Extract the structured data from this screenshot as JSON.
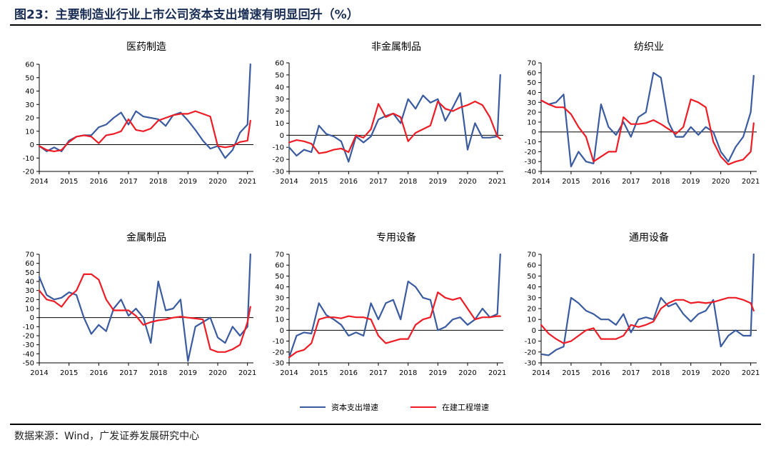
{
  "figure": {
    "title": "图23：主要制造业行业上市公司资本支出增速有明显回升（%）",
    "source": "数据来源：Wind，广发证券发展研究中心"
  },
  "legend": [
    {
      "label": "资本支出增速",
      "color": "#3a5ba0"
    },
    {
      "label": "在建工程增速",
      "color": "#ee1c25"
    }
  ],
  "chart_data": [
    {
      "type": "line",
      "title": "医药制造",
      "ylim": [
        -20,
        60
      ],
      "yticks": [
        -20,
        -10,
        0,
        10,
        20,
        30,
        40,
        50,
        60
      ],
      "xlim": [
        2014,
        2021.2
      ],
      "xticks": [
        2014,
        2015,
        2016,
        2017,
        2018,
        2019,
        2020,
        2021
      ],
      "series": [
        {
          "name": "资本支出增速",
          "x": [
            2014.0,
            2014.25,
            2014.5,
            2014.75,
            2015.0,
            2015.25,
            2015.5,
            2015.75,
            2016.0,
            2016.25,
            2016.5,
            2016.75,
            2017.0,
            2017.25,
            2017.5,
            2017.75,
            2018.0,
            2018.25,
            2018.5,
            2018.75,
            2019.0,
            2019.25,
            2019.5,
            2019.75,
            2020.0,
            2020.25,
            2020.5,
            2020.75,
            2021.0,
            2021.1
          ],
          "y": [
            -1,
            -5,
            -2,
            -5,
            3,
            6,
            7,
            7,
            13,
            15,
            20,
            24,
            15,
            25,
            21,
            20,
            19,
            14,
            22,
            24,
            18,
            11,
            3,
            -3,
            -1,
            -10,
            -4,
            9,
            15,
            60
          ]
        },
        {
          "name": "在建工程增速",
          "x": [
            2014.0,
            2014.25,
            2014.5,
            2014.75,
            2015.0,
            2015.25,
            2015.5,
            2015.75,
            2016.0,
            2016.25,
            2016.5,
            2016.75,
            2017.0,
            2017.25,
            2017.5,
            2017.75,
            2018.0,
            2018.25,
            2018.5,
            2018.75,
            2019.0,
            2019.25,
            2019.5,
            2019.75,
            2020.0,
            2020.25,
            2020.5,
            2020.75,
            2021.0,
            2021.1
          ],
          "y": [
            -1,
            -4,
            -5,
            -4,
            2,
            6,
            7,
            6,
            1,
            7,
            8,
            10,
            19,
            11,
            10,
            12,
            18,
            20,
            22,
            23,
            23,
            25,
            23,
            21,
            -1,
            -2,
            -1,
            2,
            3,
            18
          ]
        }
      ]
    },
    {
      "type": "line",
      "title": "非金属制品",
      "ylim": [
        -30,
        60
      ],
      "yticks": [
        -30,
        -20,
        -10,
        0,
        10,
        20,
        30,
        40,
        50,
        60
      ],
      "xlim": [
        2014,
        2021.2
      ],
      "xticks": [
        2014,
        2015,
        2016,
        2017,
        2018,
        2019,
        2020,
        2021
      ],
      "series": [
        {
          "name": "资本支出增速",
          "x": [
            2014.0,
            2014.25,
            2014.5,
            2014.75,
            2015.0,
            2015.25,
            2015.5,
            2015.75,
            2016.0,
            2016.25,
            2016.5,
            2016.75,
            2017.0,
            2017.25,
            2017.5,
            2017.75,
            2018.0,
            2018.25,
            2018.5,
            2018.75,
            2019.0,
            2019.25,
            2019.5,
            2019.75,
            2020.0,
            2020.25,
            2020.5,
            2020.75,
            2021.0,
            2021.1
          ],
          "y": [
            -10,
            -17,
            -12,
            -14,
            8,
            1,
            -1,
            -5,
            -22,
            -1,
            -6,
            -1,
            13,
            16,
            18,
            10,
            30,
            22,
            33,
            27,
            30,
            12,
            23,
            35,
            -12,
            10,
            -2,
            -2,
            -1,
            50
          ]
        },
        {
          "name": "在建工程增速",
          "x": [
            2014.0,
            2014.25,
            2014.5,
            2014.75,
            2015.0,
            2015.25,
            2015.5,
            2015.75,
            2016.0,
            2016.25,
            2016.5,
            2016.75,
            2017.0,
            2017.25,
            2017.5,
            2017.75,
            2018.0,
            2018.25,
            2018.5,
            2018.75,
            2019.0,
            2019.25,
            2019.5,
            2019.75,
            2020.0,
            2020.25,
            2020.5,
            2020.75,
            2021.0,
            2021.1
          ],
          "y": [
            -6,
            -4,
            -5,
            -7,
            -15,
            -14,
            -12,
            -11,
            -14,
            0,
            -2,
            5,
            26,
            15,
            18,
            15,
            -5,
            2,
            5,
            8,
            28,
            22,
            20,
            23,
            25,
            28,
            25,
            15,
            -1,
            -3
          ]
        }
      ]
    },
    {
      "type": "line",
      "title": "纺织业",
      "ylim": [
        -40,
        70
      ],
      "yticks": [
        -40,
        -30,
        -20,
        -10,
        0,
        10,
        20,
        30,
        40,
        50,
        60,
        70
      ],
      "xlim": [
        2014,
        2021.2
      ],
      "xticks": [
        2014,
        2015,
        2016,
        2017,
        2018,
        2019,
        2020,
        2021
      ],
      "series": [
        {
          "name": "资本支出增速",
          "x": [
            2014.0,
            2014.25,
            2014.5,
            2014.75,
            2015.0,
            2015.25,
            2015.5,
            2015.75,
            2016.0,
            2016.25,
            2016.5,
            2016.75,
            2017.0,
            2017.25,
            2017.5,
            2017.75,
            2018.0,
            2018.25,
            2018.5,
            2018.75,
            2019.0,
            2019.25,
            2019.5,
            2019.75,
            2020.0,
            2020.25,
            2020.5,
            2020.75,
            2021.0,
            2021.1
          ],
          "y": [
            32,
            28,
            30,
            38,
            -35,
            -20,
            -30,
            -32,
            28,
            5,
            -3,
            10,
            -5,
            15,
            20,
            60,
            55,
            10,
            -5,
            -5,
            5,
            -3,
            5,
            0,
            -20,
            -30,
            -15,
            -5,
            20,
            57
          ]
        },
        {
          "name": "在建工程增速",
          "x": [
            2014.0,
            2014.25,
            2014.5,
            2014.75,
            2015.0,
            2015.25,
            2015.5,
            2015.75,
            2016.0,
            2016.25,
            2016.5,
            2016.75,
            2017.0,
            2017.25,
            2017.5,
            2017.75,
            2018.0,
            2018.25,
            2018.5,
            2018.75,
            2019.0,
            2019.25,
            2019.5,
            2019.75,
            2020.0,
            2020.25,
            2020.5,
            2020.75,
            2021.0,
            2021.1
          ],
          "y": [
            32,
            28,
            25,
            25,
            18,
            5,
            -5,
            -30,
            -25,
            -20,
            -20,
            15,
            8,
            8,
            9,
            12,
            8,
            3,
            -2,
            5,
            33,
            30,
            25,
            -10,
            -25,
            -33,
            -30,
            -28,
            -20,
            9
          ]
        }
      ]
    },
    {
      "type": "line",
      "title": "金属制品",
      "ylim": [
        -50,
        70
      ],
      "yticks": [
        -50,
        -40,
        -30,
        -20,
        -10,
        0,
        10,
        20,
        30,
        40,
        50,
        60,
        70
      ],
      "xlim": [
        2014,
        2021.2
      ],
      "xticks": [
        2014,
        2015,
        2016,
        2017,
        2018,
        2019,
        2020,
        2021
      ],
      "series": [
        {
          "name": "资本支出增速",
          "x": [
            2014.0,
            2014.25,
            2014.5,
            2014.75,
            2015.0,
            2015.25,
            2015.5,
            2015.75,
            2016.0,
            2016.25,
            2016.5,
            2016.75,
            2017.0,
            2017.25,
            2017.5,
            2017.75,
            2018.0,
            2018.25,
            2018.5,
            2018.75,
            2019.0,
            2019.25,
            2019.5,
            2019.75,
            2020.0,
            2020.25,
            2020.5,
            2020.75,
            2021.0,
            2021.1
          ],
          "y": [
            45,
            25,
            20,
            22,
            28,
            25,
            0,
            -18,
            -8,
            -15,
            10,
            20,
            2,
            10,
            0,
            -28,
            40,
            8,
            10,
            20,
            -48,
            -10,
            -5,
            0,
            -22,
            -28,
            -10,
            -20,
            -10,
            70
          ]
        },
        {
          "name": "在建工程增速",
          "x": [
            2014.0,
            2014.25,
            2014.5,
            2014.75,
            2015.0,
            2015.25,
            2015.5,
            2015.75,
            2016.0,
            2016.25,
            2016.5,
            2016.75,
            2017.0,
            2017.25,
            2017.5,
            2017.75,
            2018.0,
            2018.25,
            2018.5,
            2018.75,
            2019.0,
            2019.25,
            2019.5,
            2019.75,
            2020.0,
            2020.25,
            2020.5,
            2020.75,
            2021.0,
            2021.1
          ],
          "y": [
            30,
            20,
            18,
            12,
            23,
            30,
            48,
            48,
            42,
            20,
            8,
            8,
            8,
            2,
            -8,
            -5,
            -3,
            -2,
            0,
            1,
            0,
            -1,
            -2,
            -35,
            -38,
            -38,
            -35,
            -30,
            -5,
            12
          ]
        }
      ]
    },
    {
      "type": "line",
      "title": "专用设备",
      "ylim": [
        -30,
        70
      ],
      "yticks": [
        -30,
        -20,
        -10,
        0,
        10,
        20,
        30,
        40,
        50,
        60,
        70
      ],
      "xlim": [
        2014,
        2021.2
      ],
      "xticks": [
        2014,
        2015,
        2016,
        2017,
        2018,
        2019,
        2020,
        2021
      ],
      "series": [
        {
          "name": "资本支出增速",
          "x": [
            2014.0,
            2014.25,
            2014.5,
            2014.75,
            2015.0,
            2015.25,
            2015.5,
            2015.75,
            2016.0,
            2016.25,
            2016.5,
            2016.75,
            2017.0,
            2017.25,
            2017.5,
            2017.75,
            2018.0,
            2018.25,
            2018.5,
            2018.75,
            2019.0,
            2019.25,
            2019.5,
            2019.75,
            2020.0,
            2020.25,
            2020.5,
            2020.75,
            2021.0,
            2021.1
          ],
          "y": [
            -25,
            -5,
            -2,
            -3,
            25,
            14,
            10,
            5,
            -5,
            -2,
            -5,
            25,
            10,
            25,
            28,
            10,
            45,
            40,
            30,
            28,
            0,
            3,
            10,
            12,
            5,
            10,
            20,
            12,
            15,
            70
          ]
        },
        {
          "name": "在建工程增速",
          "x": [
            2014.0,
            2014.25,
            2014.5,
            2014.75,
            2015.0,
            2015.25,
            2015.5,
            2015.75,
            2016.0,
            2016.25,
            2016.5,
            2016.75,
            2017.0,
            2017.25,
            2017.5,
            2017.75,
            2018.0,
            2018.25,
            2018.5,
            2018.75,
            2019.0,
            2019.25,
            2019.5,
            2019.75,
            2020.0,
            2020.25,
            2020.5,
            2020.75,
            2021.0,
            2021.1
          ],
          "y": [
            -25,
            -20,
            -18,
            -12,
            10,
            12,
            12,
            11,
            13,
            12,
            12,
            10,
            -5,
            -12,
            -10,
            -8,
            -8,
            5,
            10,
            12,
            35,
            30,
            28,
            30,
            20,
            10,
            12,
            12,
            13,
            13
          ]
        }
      ]
    },
    {
      "type": "line",
      "title": "通用设备",
      "ylim": [
        -30,
        70
      ],
      "yticks": [
        -30,
        -20,
        -10,
        0,
        10,
        20,
        30,
        40,
        50,
        60,
        70
      ],
      "xlim": [
        2014,
        2021.2
      ],
      "xticks": [
        2014,
        2015,
        2016,
        2017,
        2018,
        2019,
        2020,
        2021
      ],
      "series": [
        {
          "name": "资本支出增速",
          "x": [
            2014.0,
            2014.25,
            2014.5,
            2014.75,
            2015.0,
            2015.25,
            2015.5,
            2015.75,
            2016.0,
            2016.25,
            2016.5,
            2016.75,
            2017.0,
            2017.25,
            2017.5,
            2017.75,
            2018.0,
            2018.25,
            2018.5,
            2018.75,
            2019.0,
            2019.25,
            2019.5,
            2019.75,
            2020.0,
            2020.25,
            2020.5,
            2020.75,
            2021.0,
            2021.1
          ],
          "y": [
            -22,
            -23,
            -18,
            -15,
            30,
            25,
            18,
            15,
            10,
            10,
            5,
            15,
            -2,
            10,
            12,
            10,
            30,
            22,
            25,
            15,
            8,
            15,
            18,
            28,
            -15,
            -5,
            0,
            -5,
            -5,
            70
          ]
        },
        {
          "name": "在建工程增速",
          "x": [
            2014.0,
            2014.25,
            2014.5,
            2014.75,
            2015.0,
            2015.25,
            2015.5,
            2015.75,
            2016.0,
            2016.25,
            2016.5,
            2016.75,
            2017.0,
            2017.25,
            2017.5,
            2017.75,
            2018.0,
            2018.25,
            2018.5,
            2018.75,
            2019.0,
            2019.25,
            2019.5,
            2019.75,
            2020.0,
            2020.25,
            2020.5,
            2020.75,
            2021.0,
            2021.1
          ],
          "y": [
            5,
            -3,
            -8,
            -12,
            -10,
            -5,
            0,
            2,
            -8,
            -8,
            -8,
            -5,
            5,
            3,
            5,
            8,
            20,
            25,
            28,
            28,
            25,
            26,
            25,
            26,
            28,
            30,
            30,
            28,
            25,
            18
          ]
        }
      ]
    }
  ]
}
